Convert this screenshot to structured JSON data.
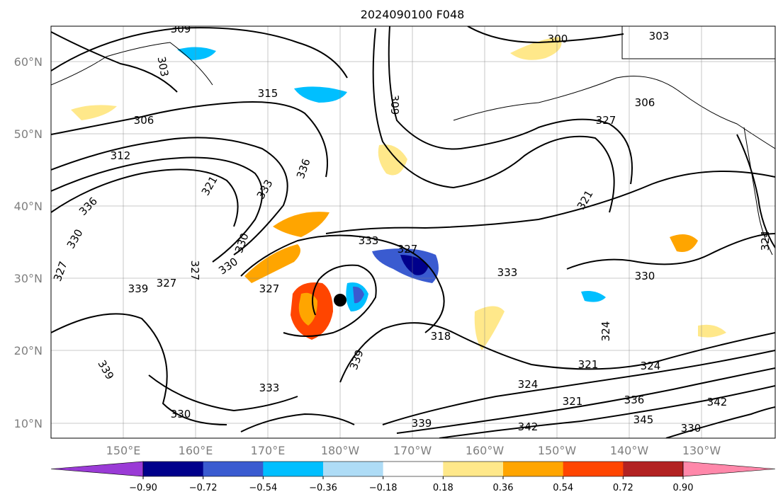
{
  "title": "2024090100 F048",
  "map": {
    "lat_labels": [
      "60°N",
      "50°N",
      "40°N",
      "30°N",
      "20°N",
      "10°N"
    ],
    "lon_labels": [
      "150°E",
      "160°E",
      "170°E",
      "180°W",
      "170°W",
      "160°W",
      "150°W",
      "140°W",
      "130°W"
    ],
    "contour_labels": [
      "309",
      "303",
      "300",
      "303",
      "315",
      "306",
      "306",
      "312",
      "309",
      "321",
      "336",
      "333",
      "327",
      "333",
      "330",
      "327",
      "330",
      "339",
      "327",
      "327",
      "333",
      "330",
      "318",
      "324",
      "321",
      "324",
      "324",
      "321",
      "330",
      "336",
      "333",
      "339",
      "342",
      "345",
      "342",
      "339",
      "330",
      "336",
      "339",
      "327",
      "330",
      "324",
      "321",
      "327"
    ],
    "colors": {
      "contour": "#000000",
      "coast": "#000000",
      "grid": "#7f7f7f",
      "storm_marker": "#000000"
    }
  },
  "colorbar": {
    "ticks": [
      "−0.90",
      "−0.72",
      "−0.54",
      "−0.36",
      "−0.18",
      "0.18",
      "0.36",
      "0.54",
      "0.72",
      "0.90"
    ],
    "colors": [
      "#9a3bd6",
      "#00008b",
      "#3a5bd0",
      "#00bfff",
      "#aedcf6",
      "#ffffff",
      "#ffe88a",
      "#ffa500",
      "#ff4500",
      "#b22222",
      "#ff88aa"
    ]
  }
}
